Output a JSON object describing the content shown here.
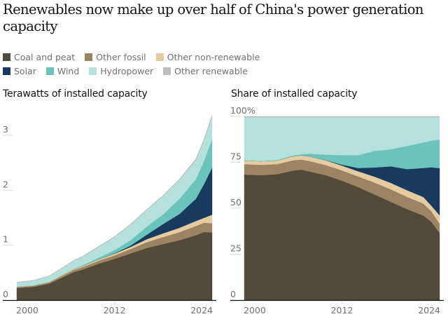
{
  "title": "Renewables now make up over half of China's power generation capacity",
  "legend": [
    {
      "key": "coal",
      "label": "Coal and peat",
      "color": "#524a3a"
    },
    {
      "key": "fossil",
      "label": "Other fossil",
      "color": "#9b8462"
    },
    {
      "key": "nonren",
      "label": "Other non-renewable",
      "color": "#e5cba0"
    },
    {
      "key": "solar",
      "label": "Solar",
      "color": "#173a5e"
    },
    {
      "key": "wind",
      "label": "Wind",
      "color": "#6cc3bb"
    },
    {
      "key": "hydro",
      "label": "Hydropower",
      "color": "#b4e1dc"
    },
    {
      "key": "otherren",
      "label": "Other renewable",
      "color": "#bdbdbd"
    }
  ],
  "chart_data": [
    {
      "type": "area",
      "stacked": true,
      "title": "Terawatts of installed capacity",
      "xlabel": "",
      "ylabel": "Terawatts",
      "x_ticks": [
        "2000",
        "2012",
        "2024"
      ],
      "y_ticks": [
        "0",
        "1",
        "2",
        "3"
      ],
      "ylim": [
        0,
        3.35
      ],
      "xlim": [
        2000,
        2024
      ],
      "x": [
        2000,
        2002,
        2004,
        2006,
        2007,
        2008,
        2010,
        2012,
        2014,
        2016,
        2018,
        2020,
        2022,
        2023,
        2024
      ],
      "series": [
        {
          "name": "Coal and peat",
          "key": "coal",
          "values": [
            0.22,
            0.24,
            0.3,
            0.44,
            0.51,
            0.55,
            0.66,
            0.75,
            0.85,
            0.95,
            1.02,
            1.09,
            1.18,
            1.24,
            1.23
          ]
        },
        {
          "name": "Other fossil",
          "key": "fossil",
          "values": [
            0.018,
            0.02,
            0.024,
            0.035,
            0.04,
            0.045,
            0.053,
            0.064,
            0.08,
            0.107,
            0.129,
            0.147,
            0.169,
            0.169,
            0.17
          ]
        },
        {
          "name": "Other non-renewable",
          "key": "nonren",
          "values": [
            0.006,
            0.007,
            0.009,
            0.014,
            0.017,
            0.02,
            0.025,
            0.03,
            0.039,
            0.053,
            0.067,
            0.079,
            0.09,
            0.088,
            0.154
          ]
        },
        {
          "name": "Solar",
          "key": "solar",
          "values": [
            0,
            0,
            0,
            0,
            0,
            0,
            0.001,
            0.006,
            0.025,
            0.083,
            0.171,
            0.253,
            0.404,
            0.613,
            0.858
          ]
        },
        {
          "name": "Wind",
          "key": "wind",
          "values": [
            0.0003,
            0.0004,
            0.0009,
            0.0025,
            0.0043,
            0.012,
            0.029,
            0.06,
            0.097,
            0.149,
            0.177,
            0.277,
            0.356,
            0.423,
            0.523
          ]
        },
        {
          "name": "Hydropower",
          "key": "hydro",
          "values": [
            0.075,
            0.086,
            0.103,
            0.129,
            0.145,
            0.156,
            0.197,
            0.237,
            0.284,
            0.302,
            0.331,
            0.343,
            0.351,
            0.371,
            0.409
          ]
        },
        {
          "name": "Other renewable",
          "key": "otherren",
          "values": [
            0.0016,
            0.0018,
            0.0022,
            0.0031,
            0.0036,
            0.004,
            0.0049,
            0.0058,
            0.0069,
            0.0083,
            0.0095,
            0.011,
            0.0128,
            0.0146,
            0.0134
          ]
        }
      ]
    },
    {
      "type": "area",
      "stacked": true,
      "title": "Share of installed capacity",
      "xlabel": "",
      "ylabel": "Share (%)",
      "x_ticks": [
        "2000",
        "2012",
        "2024"
      ],
      "y_ticks": [
        "0",
        "25",
        "50",
        "75",
        "100%"
      ],
      "ylim": [
        0,
        100
      ],
      "xlim": [
        2000,
        2024
      ],
      "x": [
        2000,
        2002,
        2004,
        2006,
        2007,
        2008,
        2010,
        2012,
        2014,
        2016,
        2018,
        2020,
        2022,
        2023,
        2024
      ],
      "series": [
        {
          "name": "Coal and peat",
          "key": "coal",
          "values": [
            68.3,
            68.0,
            68.5,
            70.5,
            71.0,
            70.0,
            68.0,
            65.0,
            61.5,
            57.5,
            53.5,
            49.5,
            46.0,
            42.5,
            36.6
          ]
        },
        {
          "name": "Other fossil",
          "key": "fossil",
          "values": [
            5.7,
            5.6,
            5.5,
            5.6,
            5.5,
            5.7,
            5.5,
            5.6,
            5.8,
            6.5,
            6.8,
            6.7,
            6.6,
            5.8,
            5.0
          ]
        },
        {
          "name": "Other non-renewable",
          "key": "nonren",
          "values": [
            2.0,
            2.0,
            2.0,
            2.2,
            2.3,
            2.5,
            2.6,
            2.6,
            2.8,
            3.2,
            3.5,
            3.6,
            3.5,
            3.0,
            4.6
          ]
        },
        {
          "name": "Solar",
          "key": "solar",
          "values": [
            0,
            0,
            0,
            0,
            0,
            0,
            0.1,
            0.5,
            1.8,
            5.0,
            9.0,
            11.5,
            15.8,
            21.0,
            25.6
          ]
        },
        {
          "name": "Wind",
          "key": "wind",
          "values": [
            0.1,
            0.1,
            0.2,
            0.4,
            0.6,
            1.5,
            3.0,
            5.2,
            7.0,
            9.0,
            9.3,
            12.6,
            13.9,
            14.5,
            15.6
          ]
        },
        {
          "name": "Hydropower",
          "key": "hydro",
          "values": [
            23.4,
            23.8,
            23.3,
            20.8,
            20.1,
            19.8,
            20.3,
            20.6,
            20.6,
            18.3,
            17.4,
            15.6,
            13.7,
            12.7,
            12.2
          ]
        },
        {
          "name": "Other renewable",
          "key": "otherren",
          "values": [
            0.5,
            0.5,
            0.5,
            0.5,
            0.5,
            0.5,
            0.5,
            0.5,
            0.5,
            0.5,
            0.5,
            0.5,
            0.5,
            0.5,
            0.4
          ]
        }
      ]
    }
  ]
}
